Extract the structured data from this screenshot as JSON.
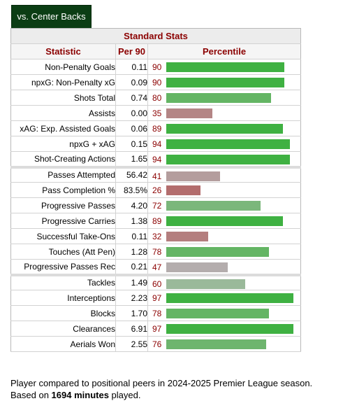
{
  "tab": {
    "label": "vs. Center Backs"
  },
  "table": {
    "title": "Standard Stats",
    "headers": {
      "statistic": "Statistic",
      "per90": "Per 90",
      "percentile": "Percentile"
    },
    "rows": [
      {
        "name": "Non-Penalty Goals",
        "per90": "0.11",
        "percentile": 90,
        "color": "#3fb142"
      },
      {
        "name": "npxG: Non-Penalty xG",
        "per90": "0.09",
        "percentile": 90,
        "color": "#3fb142"
      },
      {
        "name": "Shots Total",
        "per90": "0.74",
        "percentile": 80,
        "color": "#64b564"
      },
      {
        "name": "Assists",
        "per90": "0.00",
        "percentile": 35,
        "color": "#b48585"
      },
      {
        "name": "xAG: Exp. Assisted Goals",
        "per90": "0.06",
        "percentile": 89,
        "color": "#3fb142"
      },
      {
        "name": "npxG + xAG",
        "per90": "0.15",
        "percentile": 94,
        "color": "#3fb142"
      },
      {
        "name": "Shot-Creating Actions",
        "per90": "1.65",
        "percentile": 94,
        "color": "#3fb142"
      },
      {
        "name": "Passes Attempted",
        "per90": "56.42",
        "percentile": 41,
        "color": "#b49d9d",
        "sep": true
      },
      {
        "name": "Pass Completion %",
        "per90": "83.5%",
        "percentile": 26,
        "color": "#b36d6d"
      },
      {
        "name": "Progressive Passes",
        "per90": "4.20",
        "percentile": 72,
        "color": "#7bb77b"
      },
      {
        "name": "Progressive Carries",
        "per90": "1.38",
        "percentile": 89,
        "color": "#3fb142"
      },
      {
        "name": "Successful Take-Ons",
        "per90": "0.11",
        "percentile": 32,
        "color": "#b47e7e"
      },
      {
        "name": "Touches (Att Pen)",
        "per90": "1.28",
        "percentile": 78,
        "color": "#64b564"
      },
      {
        "name": "Progressive Passes Rec",
        "per90": "0.21",
        "percentile": 47,
        "color": "#b4adad"
      },
      {
        "name": "Tackles",
        "per90": "1.49",
        "percentile": 60,
        "color": "#9ab99a",
        "sep": true
      },
      {
        "name": "Interceptions",
        "per90": "2.23",
        "percentile": 97,
        "color": "#3fb142"
      },
      {
        "name": "Blocks",
        "per90": "1.70",
        "percentile": 78,
        "color": "#64b564"
      },
      {
        "name": "Clearances",
        "per90": "6.91",
        "percentile": 97,
        "color": "#3fb142"
      },
      {
        "name": "Aerials Won",
        "per90": "2.55",
        "percentile": 76,
        "color": "#6eb56e"
      }
    ]
  },
  "footer": {
    "line1": "Player compared to positional peers in 2024-2025 Premier League season.",
    "line2_prefix": "Based on ",
    "minutes": "1694 minutes",
    "line2_suffix": " played."
  }
}
